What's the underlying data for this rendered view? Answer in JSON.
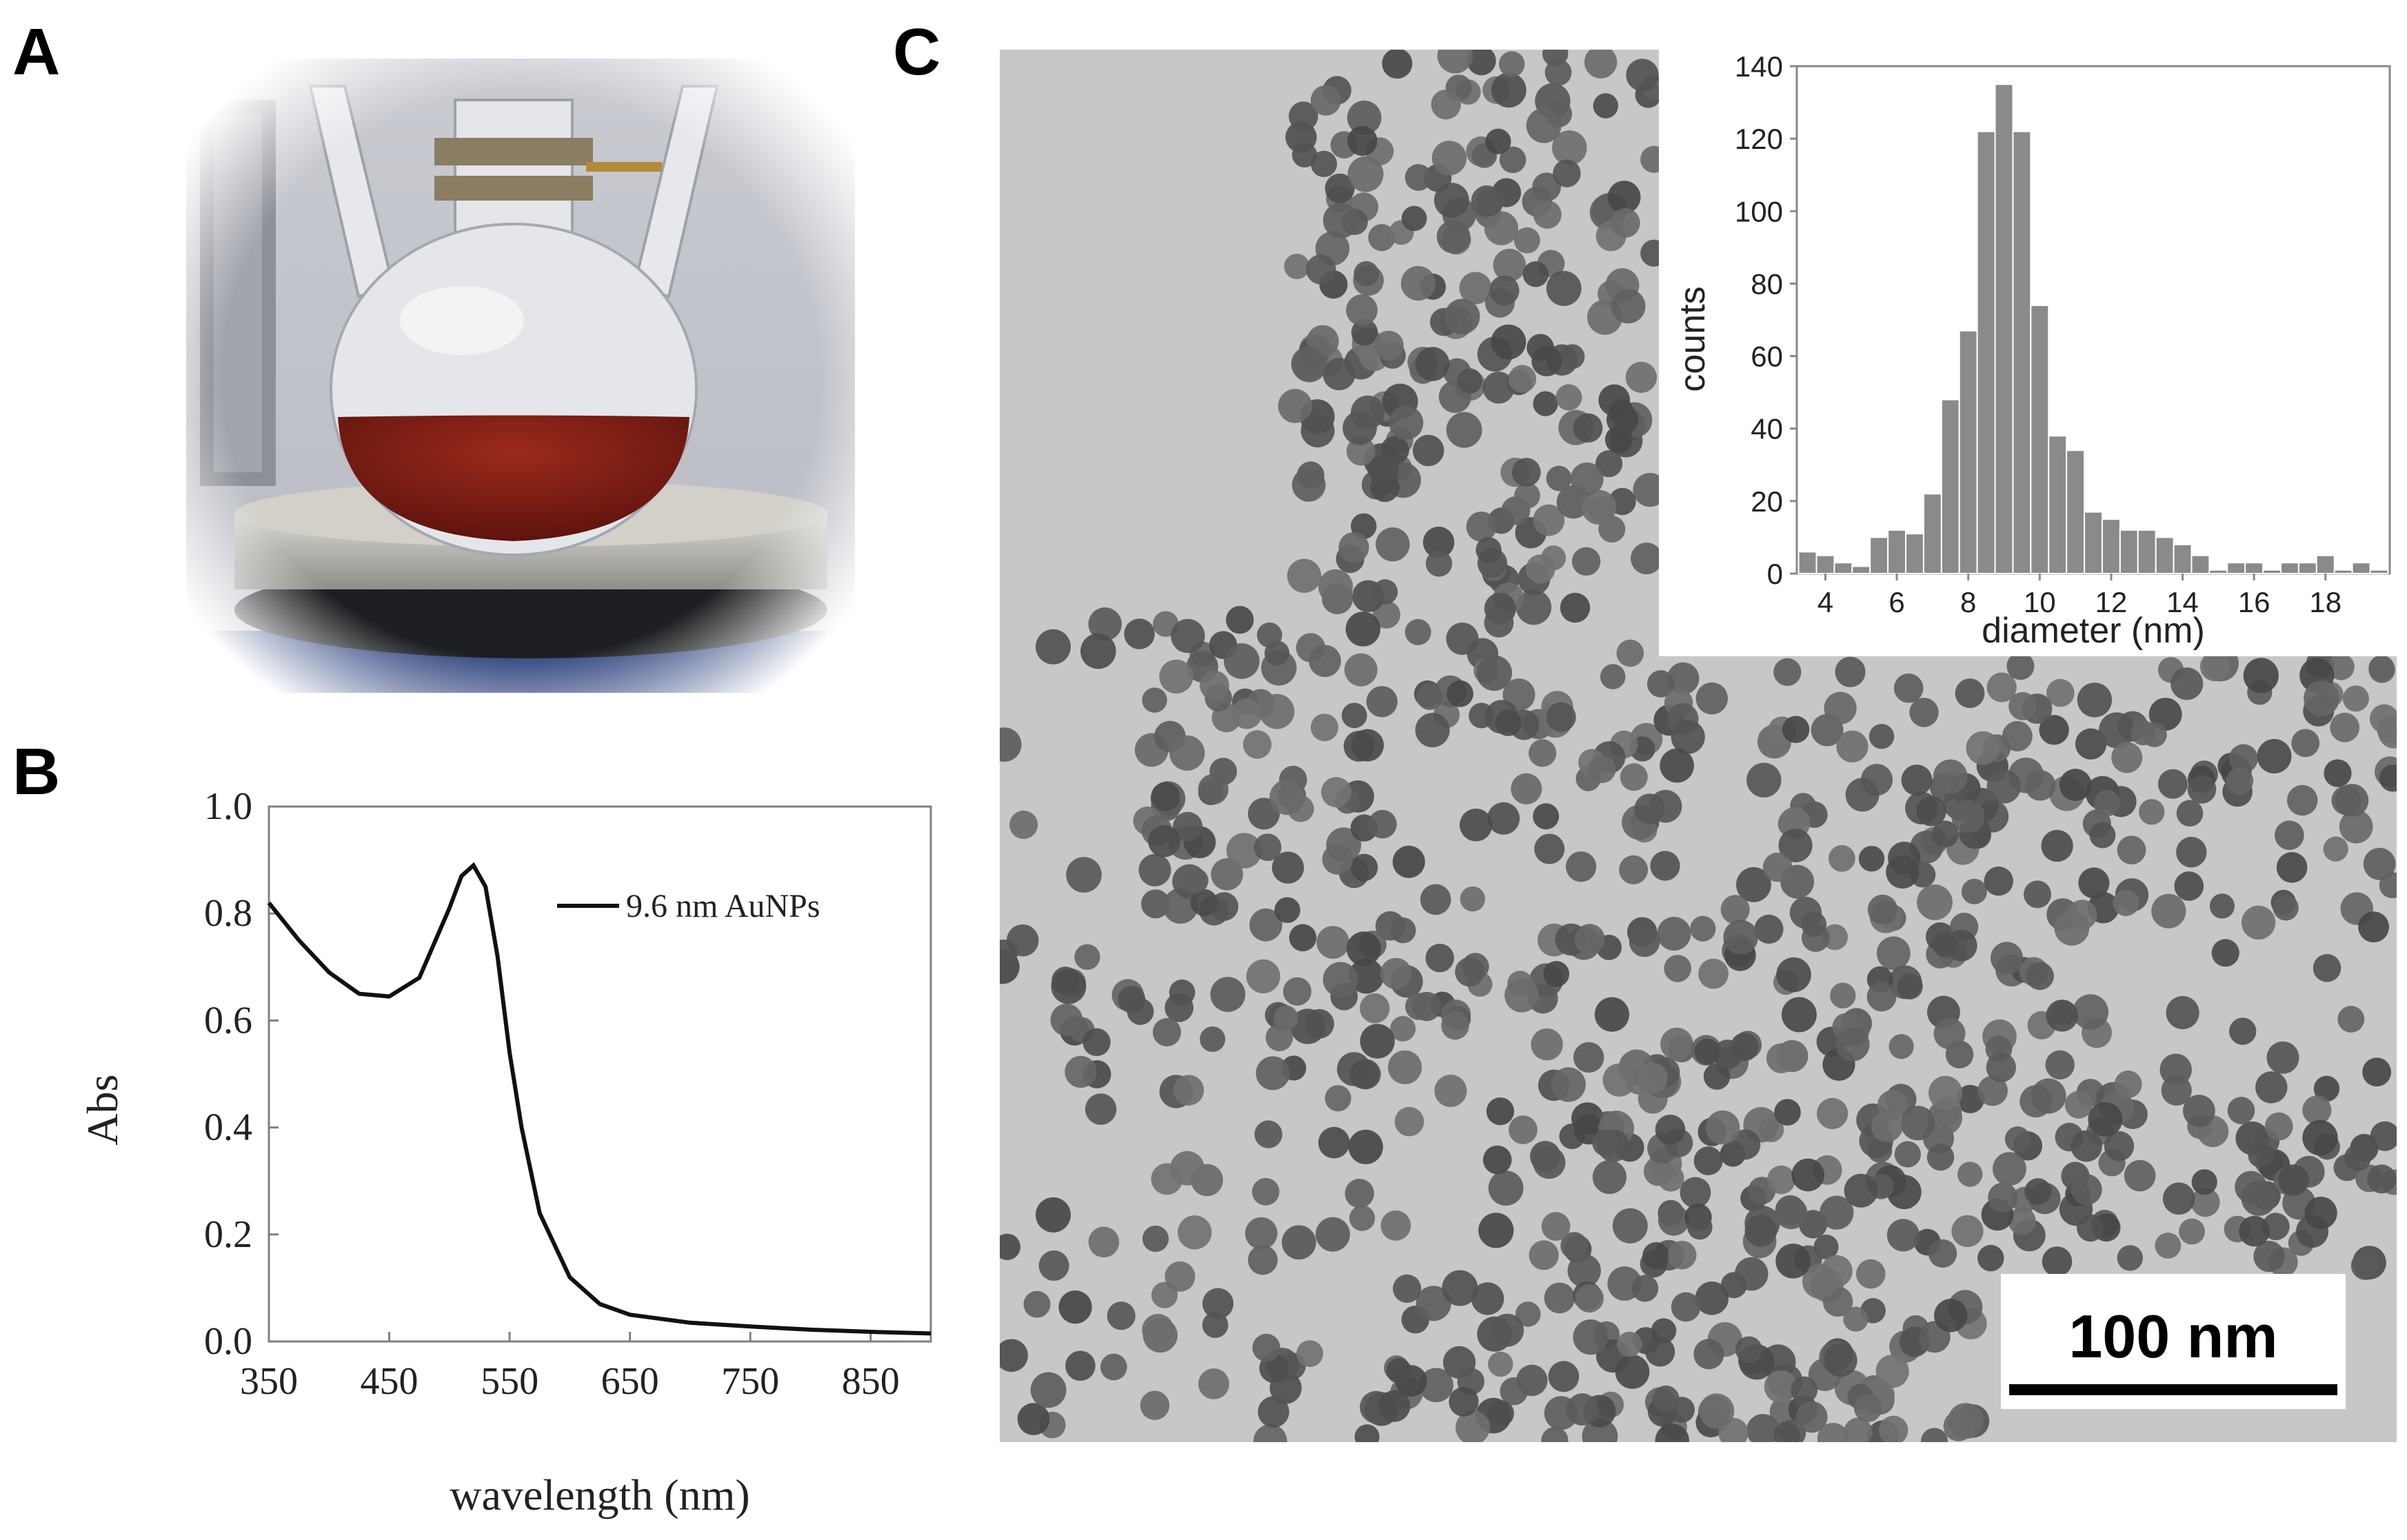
{
  "panels": {
    "a": "A",
    "b": "B",
    "c": "C"
  },
  "colors": {
    "solution": "#7a1f14",
    "tem_bg": "#c8c8c8",
    "particle": "#5a5a5a",
    "hist_bar": "#8a8a8a"
  },
  "spectrum": {
    "legend": "9.6 nm AuNPs",
    "chart_data": {
      "type": "line",
      "xlabel": "wavelength (nm)",
      "ylabel": "Abs",
      "xlim": [
        350,
        900
      ],
      "ylim": [
        0,
        1.0
      ],
      "xticks": [
        "350",
        "450",
        "550",
        "650",
        "750",
        "850"
      ],
      "yticks": [
        "0.0",
        "0.2",
        "0.4",
        "0.6",
        "0.8",
        "1.0"
      ],
      "series": [
        {
          "name": "9.6 nm AuNPs",
          "x": [
            350,
            375,
            400,
            425,
            450,
            475,
            500,
            510,
            520,
            530,
            540,
            550,
            560,
            575,
            600,
            625,
            650,
            700,
            750,
            800,
            850,
            900
          ],
          "y": [
            0.82,
            0.75,
            0.69,
            0.65,
            0.645,
            0.68,
            0.81,
            0.87,
            0.89,
            0.85,
            0.72,
            0.54,
            0.4,
            0.24,
            0.12,
            0.07,
            0.05,
            0.035,
            0.028,
            0.022,
            0.018,
            0.015
          ]
        }
      ],
      "grid": false,
      "legend_position": "top-right"
    }
  },
  "histogram": {
    "chart_data": {
      "type": "bar",
      "xlabel": "diameter (nm)",
      "ylabel": "counts",
      "xlim": [
        3.2,
        19.8
      ],
      "ylim": [
        0,
        140
      ],
      "xticks": [
        "4",
        "6",
        "8",
        "10",
        "12",
        "14",
        "16",
        "18"
      ],
      "yticks": [
        "0",
        "20",
        "40",
        "60",
        "80",
        "100",
        "120",
        "140"
      ],
      "bin_width": 0.5,
      "x": [
        3.5,
        4.0,
        4.5,
        5.0,
        5.5,
        6.0,
        6.5,
        7.0,
        7.5,
        8.0,
        8.5,
        9.0,
        9.5,
        10.0,
        10.5,
        11.0,
        11.5,
        12.0,
        12.5,
        13.0,
        13.5,
        14.0,
        14.5,
        15.0,
        15.5,
        16.0,
        16.5,
        17.0,
        17.5,
        18.0,
        18.5,
        19.0,
        19.5
      ],
      "values": [
        6,
        5,
        3,
        2,
        10,
        12,
        11,
        22,
        48,
        67,
        122,
        135,
        122,
        74,
        38,
        34,
        17,
        15,
        12,
        12,
        10,
        8,
        5,
        1,
        3,
        3,
        1,
        3,
        3,
        5,
        1,
        3,
        1
      ],
      "grid": false
    }
  },
  "scale_bar": {
    "label": "100 nm"
  }
}
